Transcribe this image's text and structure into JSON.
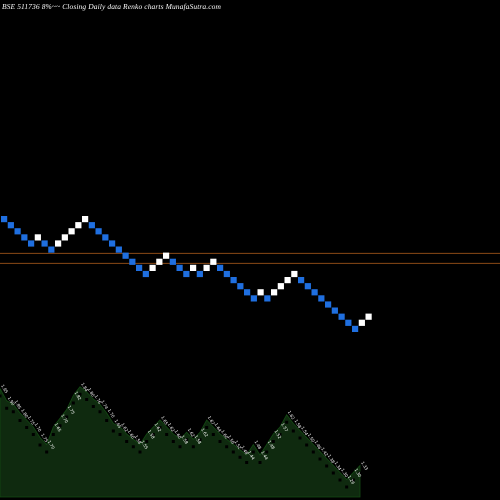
{
  "chart_data": {
    "type": "renko",
    "title": "BSE 511736  8%~~  Closing Daily data  Renko  charts MunafaSutra.com",
    "colors": {
      "background": "#000000",
      "up_brick": "#ffffff",
      "down_brick": "#1f6fe0",
      "reference_line": "#8a4a16",
      "volume_fill": "#0f2a0f",
      "volume_text": "#ffffff"
    },
    "bricks": [
      {
        "dir": "down",
        "level": 54
      },
      {
        "dir": "down",
        "level": 53
      },
      {
        "dir": "down",
        "level": 52
      },
      {
        "dir": "down",
        "level": 51
      },
      {
        "dir": "down",
        "level": 50
      },
      {
        "dir": "up",
        "level": 51
      },
      {
        "dir": "down",
        "level": 50
      },
      {
        "dir": "down",
        "level": 49
      },
      {
        "dir": "up",
        "level": 50
      },
      {
        "dir": "up",
        "level": 51
      },
      {
        "dir": "up",
        "level": 52
      },
      {
        "dir": "up",
        "level": 53
      },
      {
        "dir": "up",
        "level": 54
      },
      {
        "dir": "down",
        "level": 53
      },
      {
        "dir": "down",
        "level": 52
      },
      {
        "dir": "down",
        "level": 51
      },
      {
        "dir": "down",
        "level": 50
      },
      {
        "dir": "down",
        "level": 49
      },
      {
        "dir": "down",
        "level": 48
      },
      {
        "dir": "down",
        "level": 47
      },
      {
        "dir": "down",
        "level": 46
      },
      {
        "dir": "down",
        "level": 45
      },
      {
        "dir": "up",
        "level": 46
      },
      {
        "dir": "up",
        "level": 47
      },
      {
        "dir": "up",
        "level": 48
      },
      {
        "dir": "down",
        "level": 47
      },
      {
        "dir": "down",
        "level": 46
      },
      {
        "dir": "down",
        "level": 45
      },
      {
        "dir": "up",
        "level": 46
      },
      {
        "dir": "down",
        "level": 45
      },
      {
        "dir": "up",
        "level": 46
      },
      {
        "dir": "up",
        "level": 47
      },
      {
        "dir": "down",
        "level": 46
      },
      {
        "dir": "down",
        "level": 45
      },
      {
        "dir": "down",
        "level": 44
      },
      {
        "dir": "down",
        "level": 43
      },
      {
        "dir": "down",
        "level": 42
      },
      {
        "dir": "down",
        "level": 41
      },
      {
        "dir": "up",
        "level": 42
      },
      {
        "dir": "down",
        "level": 41
      },
      {
        "dir": "up",
        "level": 42
      },
      {
        "dir": "up",
        "level": 43
      },
      {
        "dir": "up",
        "level": 44
      },
      {
        "dir": "up",
        "level": 45
      },
      {
        "dir": "down",
        "level": 44
      },
      {
        "dir": "down",
        "level": 43
      },
      {
        "dir": "down",
        "level": 42
      },
      {
        "dir": "down",
        "level": 41
      },
      {
        "dir": "down",
        "level": 40
      },
      {
        "dir": "down",
        "level": 39
      },
      {
        "dir": "down",
        "level": 38
      },
      {
        "dir": "down",
        "level": 37
      },
      {
        "dir": "down",
        "level": 36
      },
      {
        "dir": "up",
        "level": 37
      },
      {
        "dir": "up",
        "level": 38
      }
    ],
    "reference_lines": [
      0.5067,
      0.5267
    ],
    "volume": [
      {
        "value": 62,
        "label": "1.95"
      },
      {
        "value": 55,
        "label": "1.90"
      },
      {
        "value": 53,
        "label": "1.85"
      },
      {
        "value": 48,
        "label": "1.80"
      },
      {
        "value": 44,
        "label": "1.75"
      },
      {
        "value": 40,
        "label": "1.70"
      },
      {
        "value": 34,
        "label": "1.75"
      },
      {
        "value": 30,
        "label": "1.70"
      },
      {
        "value": 40,
        "label": "1.65"
      },
      {
        "value": 45,
        "label": "1.70"
      },
      {
        "value": 50,
        "label": "1.75"
      },
      {
        "value": 58,
        "label": "1.82"
      },
      {
        "value": 63,
        "label": "1.84"
      },
      {
        "value": 60,
        "label": "1.80"
      },
      {
        "value": 56,
        "label": "1.76"
      },
      {
        "value": 53,
        "label": "1.74"
      },
      {
        "value": 48,
        "label": "1.70"
      },
      {
        "value": 42,
        "label": "1.65"
      },
      {
        "value": 40,
        "label": "1.62"
      },
      {
        "value": 36,
        "label": "1.60"
      },
      {
        "value": 33,
        "label": "1.58"
      },
      {
        "value": 30,
        "label": "1.55"
      },
      {
        "value": 36,
        "label": "1.58"
      },
      {
        "value": 40,
        "label": "1.62"
      },
      {
        "value": 44,
        "label": "1.65"
      },
      {
        "value": 40,
        "label": "1.62"
      },
      {
        "value": 36,
        "label": "1.60"
      },
      {
        "value": 33,
        "label": "1.58"
      },
      {
        "value": 37,
        "label": "1.62"
      },
      {
        "value": 33,
        "label": "1.58"
      },
      {
        "value": 37,
        "label": "1.62"
      },
      {
        "value": 44,
        "label": "1.67"
      },
      {
        "value": 40,
        "label": "1.64"
      },
      {
        "value": 36,
        "label": "1.60"
      },
      {
        "value": 33,
        "label": "1.56"
      },
      {
        "value": 30,
        "label": "1.52"
      },
      {
        "value": 27,
        "label": "1.48"
      },
      {
        "value": 24,
        "label": "1.44"
      },
      {
        "value": 30,
        "label": "1.48"
      },
      {
        "value": 24,
        "label": "1.44"
      },
      {
        "value": 30,
        "label": "1.48"
      },
      {
        "value": 36,
        "label": "1.52"
      },
      {
        "value": 40,
        "label": "1.57"
      },
      {
        "value": 47,
        "label": "1.62"
      },
      {
        "value": 42,
        "label": "1.58"
      },
      {
        "value": 38,
        "label": "1.54"
      },
      {
        "value": 34,
        "label": "1.50"
      },
      {
        "value": 30,
        "label": "1.46"
      },
      {
        "value": 26,
        "label": "1.42"
      },
      {
        "value": 22,
        "label": "1.38"
      },
      {
        "value": 18,
        "label": "1.34"
      },
      {
        "value": 14,
        "label": "1.30"
      },
      {
        "value": 10,
        "label": "1.26"
      },
      {
        "value": 14,
        "label": "1.30"
      },
      {
        "value": 18,
        "label": "1.33"
      }
    ]
  }
}
